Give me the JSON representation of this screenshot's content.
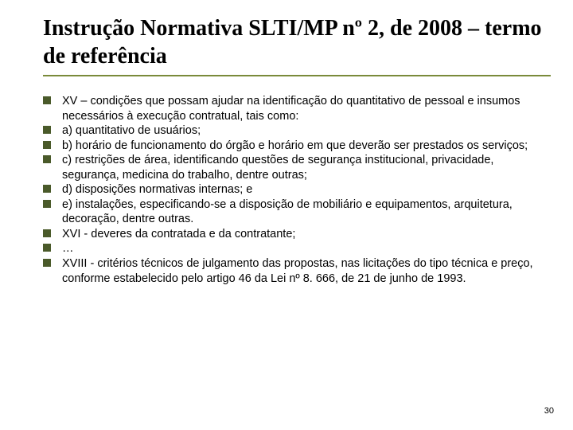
{
  "title": "Instrução Normativa SLTI/MP nº 2, de 2008 – termo de referência",
  "items": [
    "XV – condições que possam ajudar na identificação do quantitativo de pessoal e insumos necessários à execução contratual, tais como:",
    "a) quantitativo de usuários;",
    "b) horário de funcionamento do órgão e horário em que deverão ser prestados os serviços;",
    "c) restrições de área, identificando questões de segurança institucional, privacidade, segurança, medicina do trabalho, dentre outras;",
    "d) disposições normativas internas; e",
    "e) instalações, especificando-se a disposição de mobiliário e equipamentos, arquitetura, decoração, dentre outras.",
    "XVI - deveres da contratada e da contratante;",
    "…",
    "XVIII - critérios técnicos de julgamento das propostas, nas licitações do tipo técnica e preço, conforme estabelecido pelo artigo 46 da Lei nº 8. 666, de 21 de junho de 1993."
  ],
  "page_number": "30",
  "colors": {
    "rule": "#7a8a3a",
    "bullet": "#4a5a2a",
    "text": "#000000",
    "background": "#ffffff"
  },
  "fonts": {
    "title_family": "Times New Roman",
    "title_size_pt": 28,
    "body_family": "Arial",
    "body_size_pt": 14.5
  }
}
